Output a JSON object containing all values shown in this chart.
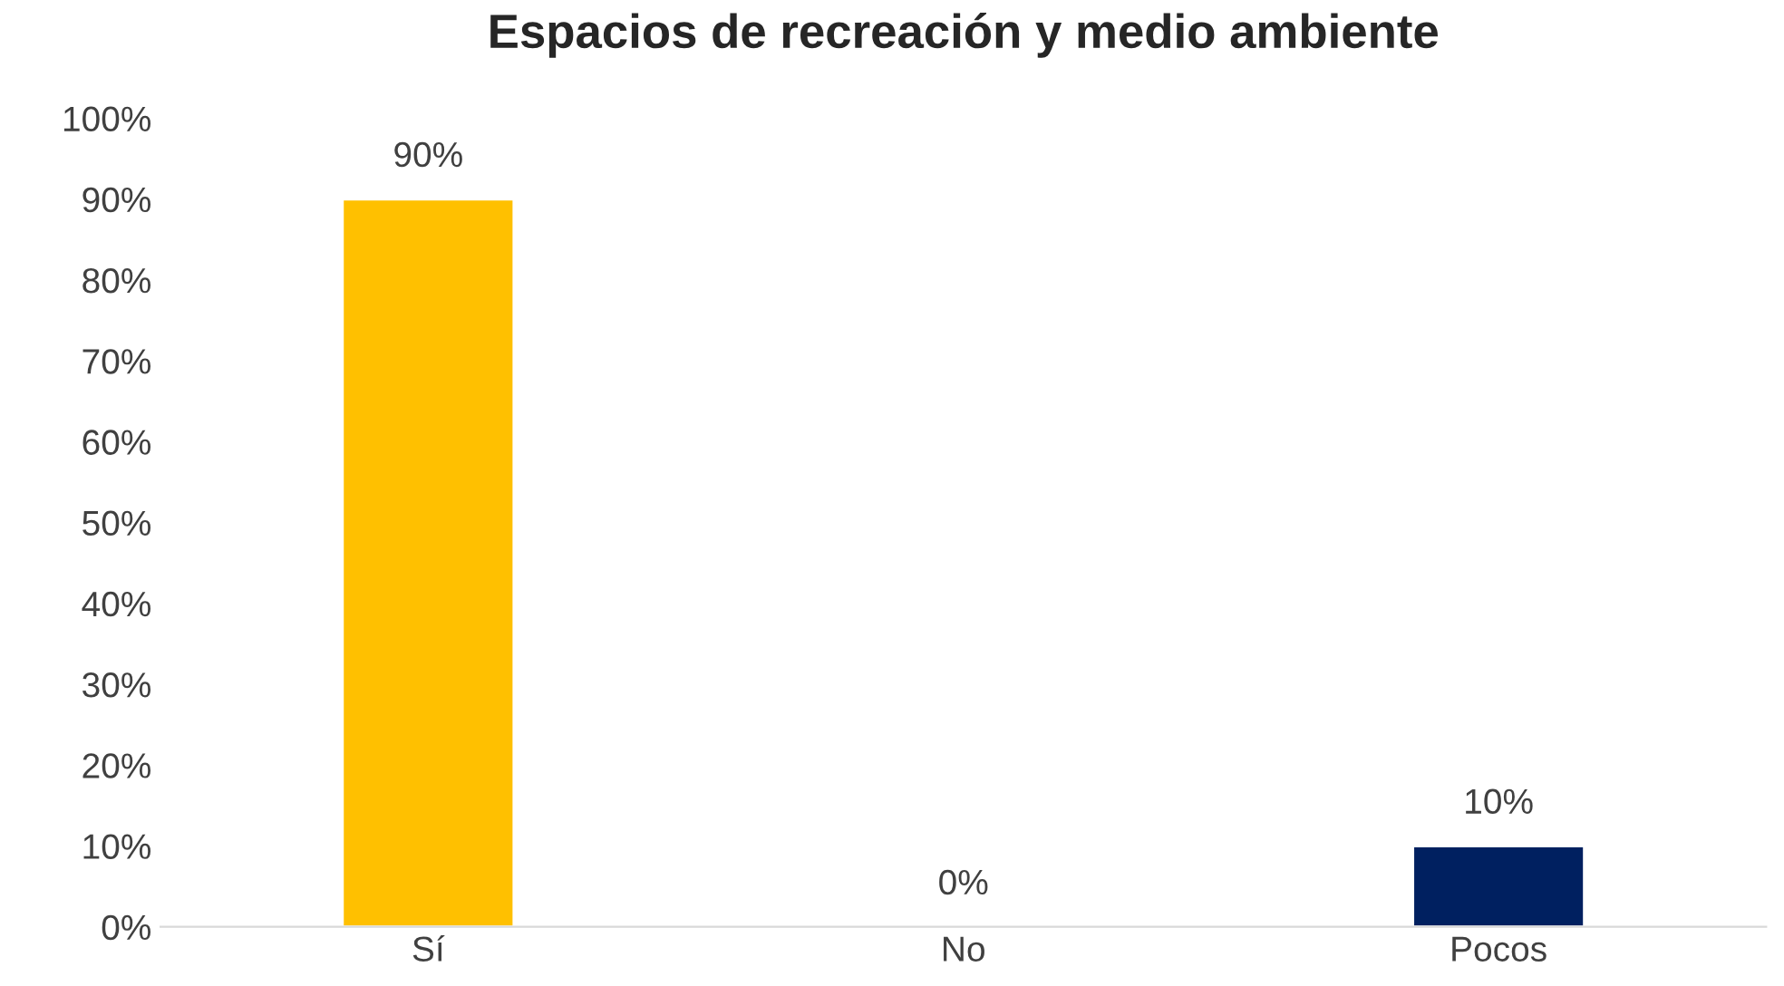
{
  "chart_data": {
    "type": "bar",
    "title": "Espacios de recreación y medio ambiente",
    "categories": [
      "Sí",
      "No",
      "Pocos"
    ],
    "values": [
      90,
      0,
      10
    ],
    "colors": [
      "#ffc000",
      null,
      "#002060"
    ],
    "value_labels": [
      "90%",
      "0%",
      "10%"
    ],
    "ylim": [
      0,
      100
    ],
    "yticks": [
      {
        "value": 0,
        "label": "0%"
      },
      {
        "value": 10,
        "label": "10%"
      },
      {
        "value": 20,
        "label": "20%"
      },
      {
        "value": 30,
        "label": "30%"
      },
      {
        "value": 40,
        "label": "40%"
      },
      {
        "value": 50,
        "label": "50%"
      },
      {
        "value": 60,
        "label": "60%"
      },
      {
        "value": 70,
        "label": "70%"
      },
      {
        "value": 80,
        "label": "80%"
      },
      {
        "value": 90,
        "label": "90%"
      },
      {
        "value": 100,
        "label": "100%"
      }
    ],
    "grid": false,
    "legend": false
  }
}
